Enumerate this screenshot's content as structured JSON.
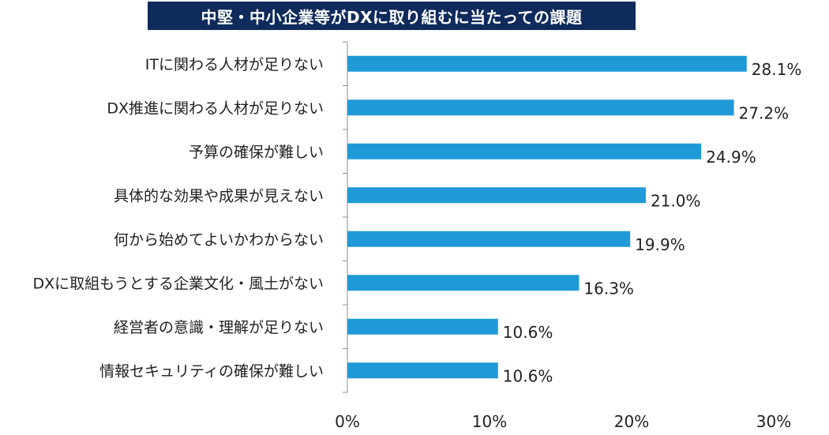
{
  "chart_data": {
    "type": "bar",
    "orientation": "horizontal",
    "title": "中堅・中小企業等がDXに取り組むに当たっての課題",
    "categories": [
      "ITに関わる人材が足りない",
      "DX推進に関わる人材が足りない",
      "予算の確保が難しい",
      "具体的な効果や成果が見えない",
      "何から始めてよいかわからない",
      "DXに取組もうとする企業文化・風土がない",
      "経営者の意識・理解が足りない",
      "情報セキュリティの確保が難しい"
    ],
    "values": [
      28.1,
      27.2,
      24.9,
      21.0,
      19.9,
      16.3,
      10.6,
      10.6
    ],
    "value_labels": [
      "28.1%",
      "27.2%",
      "24.9%",
      "21.0%",
      "19.9%",
      "16.3%",
      "10.6%",
      "10.6%"
    ],
    "xlim": [
      0,
      30
    ],
    "xticks": [
      "0%",
      "10%",
      "20%",
      "30%"
    ],
    "xtick_values": [
      0,
      10,
      20,
      30
    ],
    "bar_color": "#1f9ad6",
    "title_bg_color": "#0f2b5c",
    "grid": false
  }
}
